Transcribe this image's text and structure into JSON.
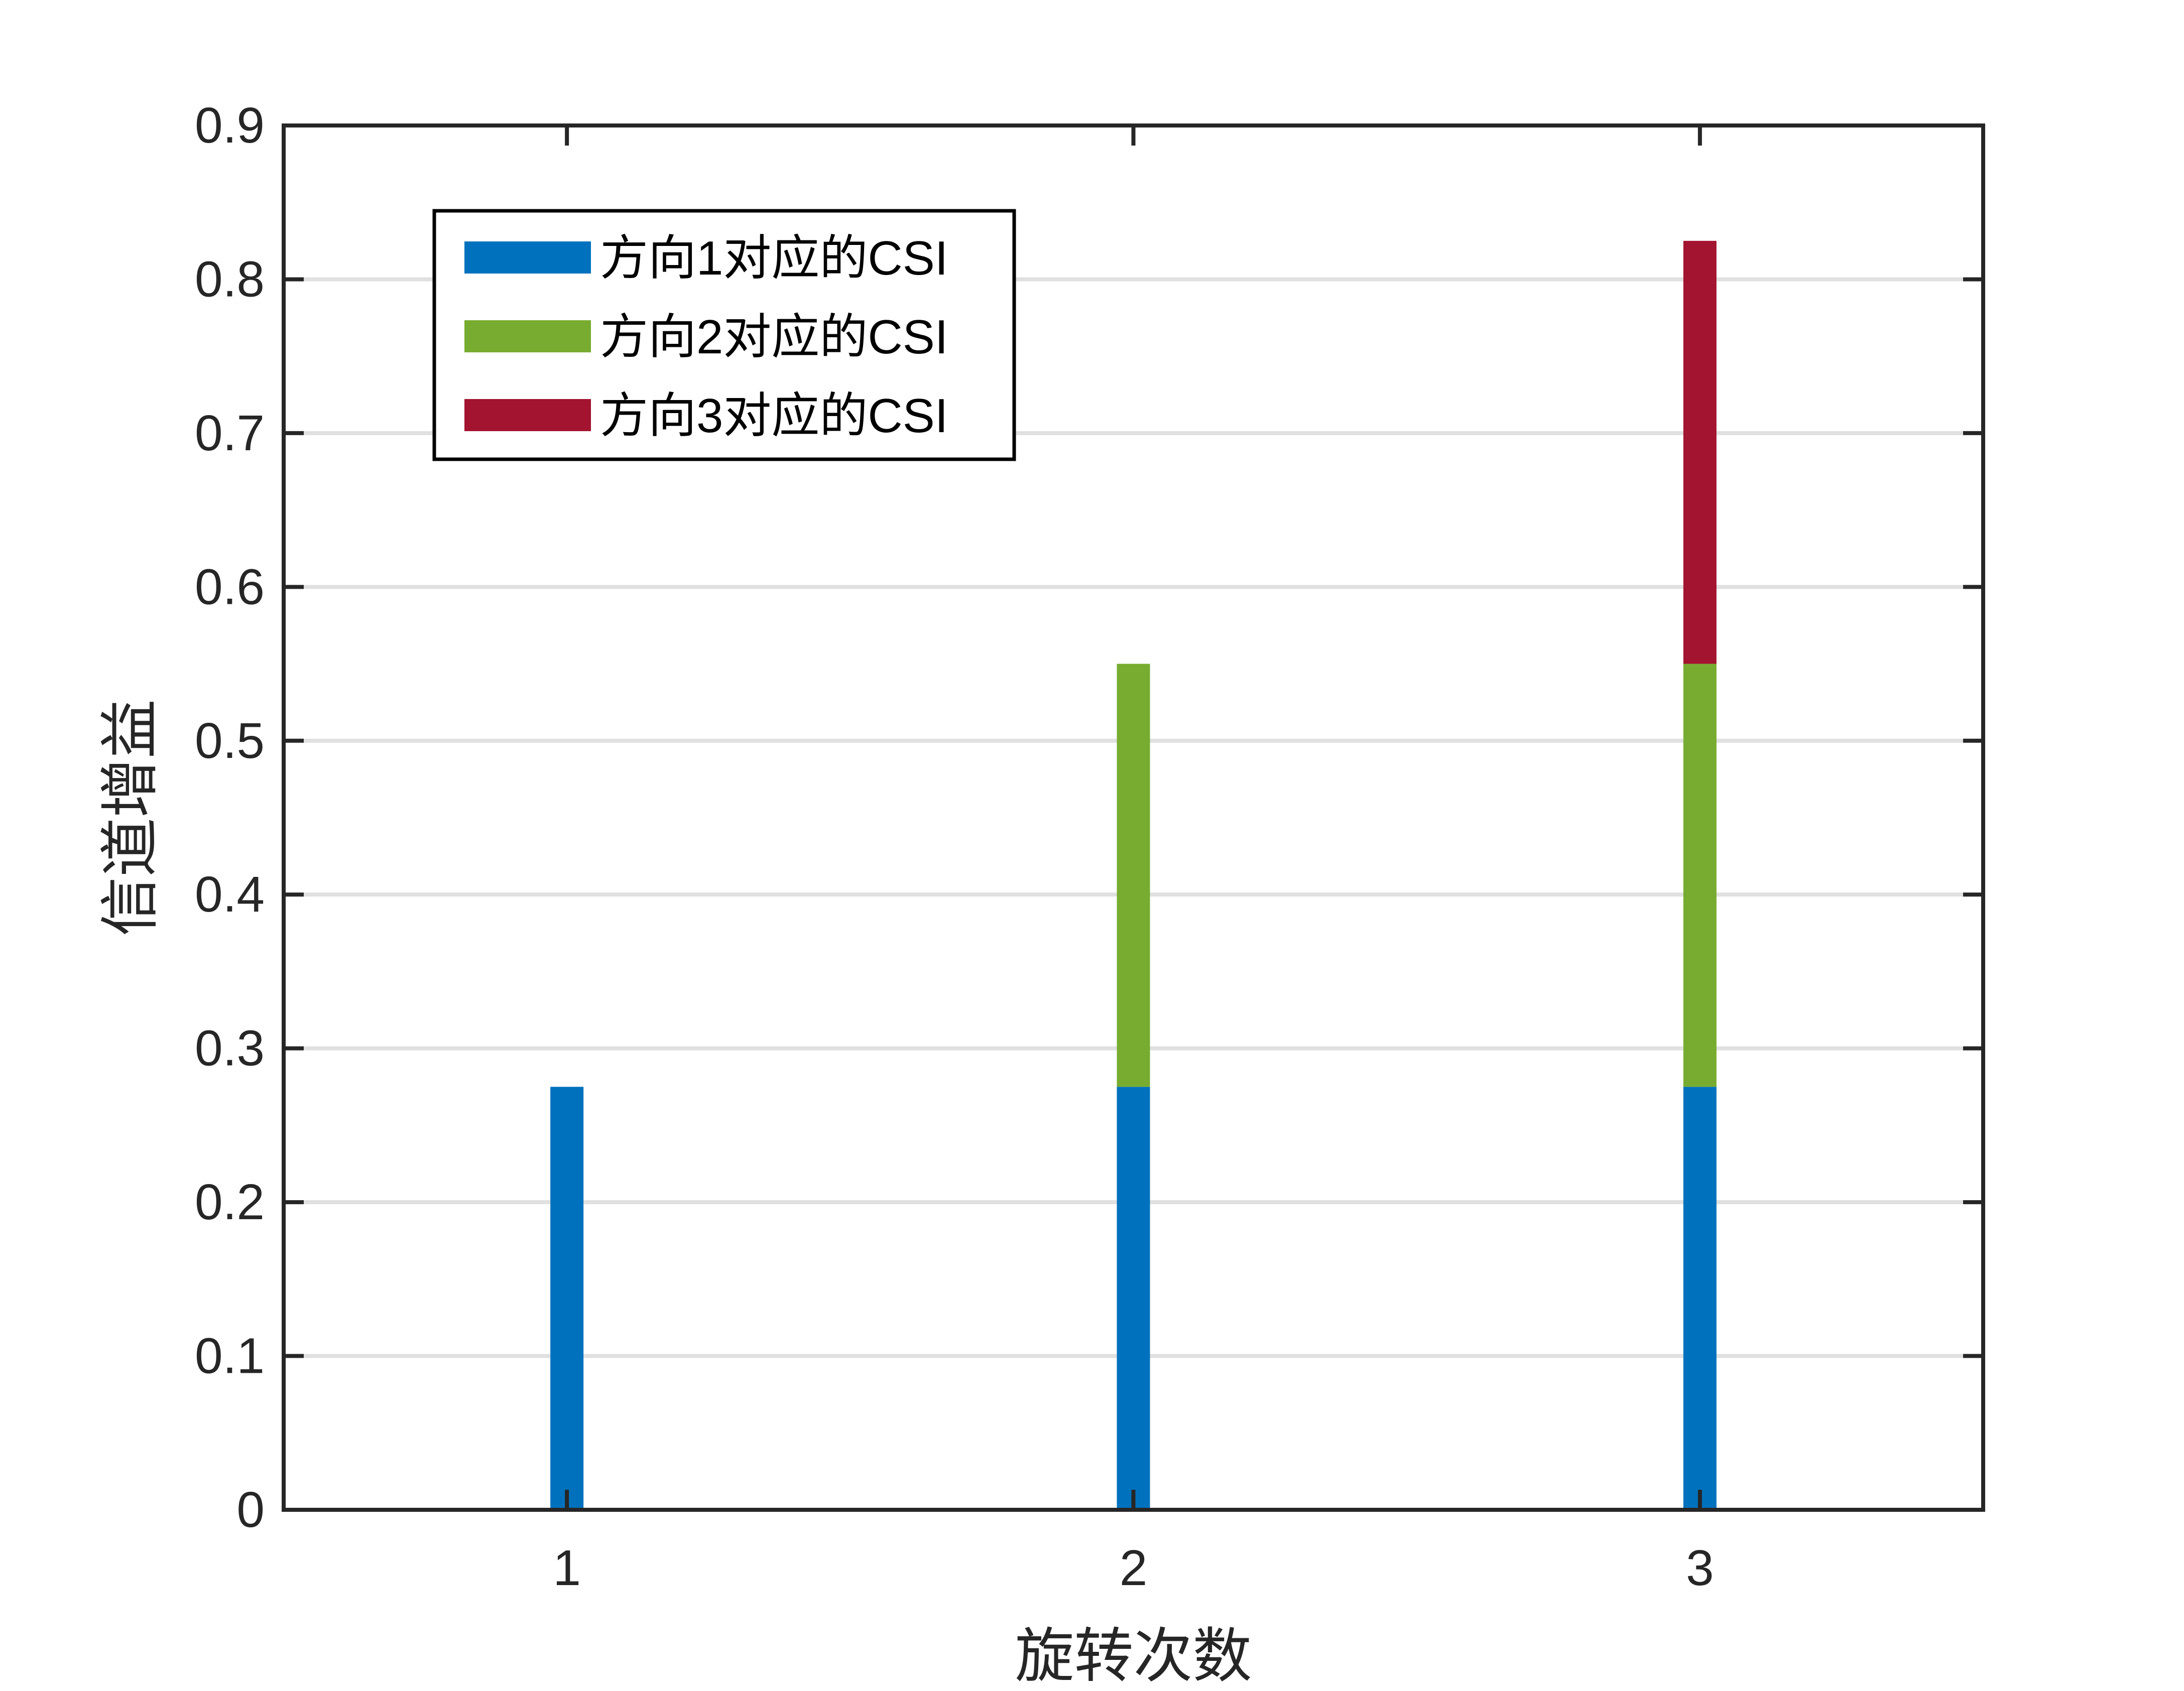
{
  "chart_data": {
    "type": "bar",
    "stacked": true,
    "categories": [
      "1",
      "2",
      "3"
    ],
    "series": [
      {
        "name": "方向1对应的CSI",
        "color": "#0072BD",
        "values": [
          0.275,
          0.275,
          0.275
        ]
      },
      {
        "name": "方向2对应的CSI",
        "color": "#77AC30",
        "values": [
          0,
          0.275,
          0.275
        ]
      },
      {
        "name": "方向3对应的CSI",
        "color": "#A2142F",
        "values": [
          0,
          0,
          0.275
        ]
      }
    ],
    "xlabel": "旋转次数",
    "ylabel": "信道增益",
    "ylim": [
      0,
      0.9
    ],
    "yticks": [
      "0",
      "0.1",
      "0.2",
      "0.3",
      "0.4",
      "0.5",
      "0.6",
      "0.7",
      "0.8",
      "0.9"
    ],
    "grid": "horizontal",
    "legend": "top-left"
  }
}
